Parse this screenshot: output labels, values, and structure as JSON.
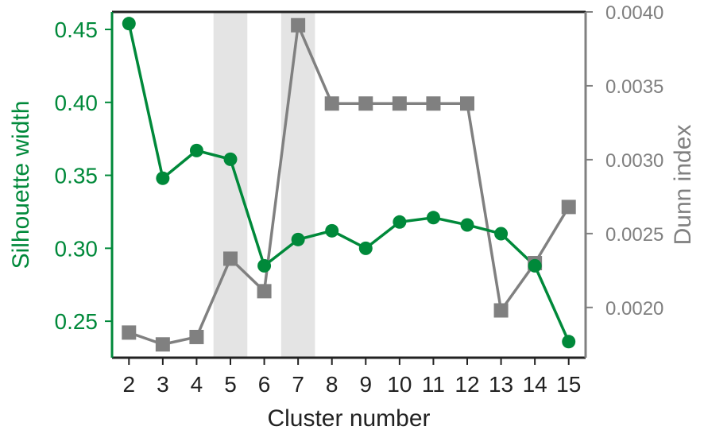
{
  "chart_data": {
    "type": "line",
    "xlabel": "Cluster number",
    "ylabel_left": "Silhouette width",
    "ylabel_right": "Dunn index",
    "x": [
      2,
      3,
      4,
      5,
      6,
      7,
      8,
      9,
      10,
      11,
      12,
      13,
      14,
      15
    ],
    "xlim": [
      1.5,
      15.5
    ],
    "ylim_left": [
      0.225,
      0.462
    ],
    "ylim_right": [
      0.00166,
      0.004
    ],
    "left_ticks": [
      "0.25",
      "0.30",
      "0.35",
      "0.40",
      "0.45"
    ],
    "right_ticks": [
      "0.0020",
      "0.0025",
      "0.0030",
      "0.0035",
      "0.0040"
    ],
    "series": [
      {
        "name": "",
        "axis": "left",
        "color": "#00893a",
        "marker": "circle",
        "values": [
          0.454,
          0.348,
          0.367,
          0.361,
          0.288,
          0.306,
          0.312,
          0.3,
          0.318,
          0.321,
          0.316,
          0.31,
          0.288,
          0.236
        ]
      },
      {
        "name": "",
        "axis": "right",
        "color": "#808080",
        "marker": "square",
        "values": [
          0.00183,
          0.00175,
          0.0018,
          0.00233,
          0.00211,
          0.00391,
          0.00338,
          0.00338,
          0.00338,
          0.00338,
          0.00338,
          0.00198,
          0.0023,
          0.00268
        ]
      }
    ],
    "highlight_bands": [
      [
        4.5,
        5.5
      ],
      [
        6.5,
        7.5
      ]
    ],
    "highlight_color": "#e4e4e4",
    "left_axis_color": "#00893a",
    "right_axis_color": "#808080",
    "grid": false
  }
}
